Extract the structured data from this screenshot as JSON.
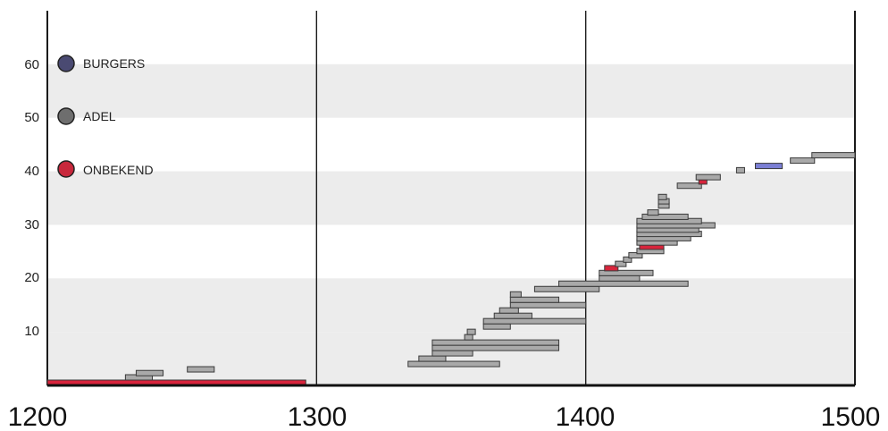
{
  "chart_data": {
    "type": "bar",
    "orientation": "horizontal-range",
    "title": "",
    "xlabel": "",
    "ylabel": "",
    "xlim": [
      1200,
      1500
    ],
    "ylim": [
      0,
      70
    ],
    "x_ticks": [
      "1200",
      "1300",
      "1400",
      "1500"
    ],
    "y_ticks": [
      "10",
      "20",
      "30",
      "40",
      "50",
      "60"
    ],
    "grid": "alternating horizontal bands every 10 units; vertical lines at 1300 and 1400",
    "legend_placement": "top-left",
    "legend": [
      {
        "label": "BURGERS",
        "color": "#4a4a72"
      },
      {
        "label": "ADEL",
        "color": "#6e6e6e"
      },
      {
        "label": "ONBEKEND",
        "color": "#c8283c"
      }
    ],
    "series_colors": {
      "BURGERS": "#7b7fd4",
      "ADEL": "#a9a9a9",
      "ONBEKEND": "#d8243c"
    },
    "bars": [
      {
        "category": "ONBEKEND",
        "start": 1200,
        "end": 1296,
        "y": 0.5
      },
      {
        "category": "ADEL",
        "start": 1229,
        "end": 1239,
        "y": 1.5
      },
      {
        "category": "ADEL",
        "start": 1233,
        "end": 1243,
        "y": 2.3
      },
      {
        "category": "ADEL",
        "start": 1252,
        "end": 1262,
        "y": 3.0
      },
      {
        "category": "ADEL",
        "start": 1334,
        "end": 1368,
        "y": 4.0
      },
      {
        "category": "ADEL",
        "start": 1338,
        "end": 1348,
        "y": 5.0
      },
      {
        "category": "ADEL",
        "start": 1343,
        "end": 1358,
        "y": 6.0
      },
      {
        "category": "ADEL",
        "start": 1343,
        "end": 1390,
        "y": 7.0
      },
      {
        "category": "ADEL",
        "start": 1343,
        "end": 1390,
        "y": 8.0
      },
      {
        "category": "ADEL",
        "start": 1355,
        "end": 1358,
        "y": 9.0
      },
      {
        "category": "ADEL",
        "start": 1356,
        "end": 1359,
        "y": 10.0
      },
      {
        "category": "ADEL",
        "start": 1362,
        "end": 1372,
        "y": 11.0
      },
      {
        "category": "ADEL",
        "start": 1362,
        "end": 1400,
        "y": 12.0
      },
      {
        "category": "ADEL",
        "start": 1366,
        "end": 1380,
        "y": 13.0
      },
      {
        "category": "ADEL",
        "start": 1368,
        "end": 1375,
        "y": 14.0
      },
      {
        "category": "ADEL",
        "start": 1372,
        "end": 1400,
        "y": 15.0
      },
      {
        "category": "ADEL",
        "start": 1372,
        "end": 1390,
        "y": 16.0
      },
      {
        "category": "ADEL",
        "start": 1372,
        "end": 1376,
        "y": 17.0
      },
      {
        "category": "ADEL",
        "start": 1381,
        "end": 1405,
        "y": 18.0
      },
      {
        "category": "ADEL",
        "start": 1390,
        "end": 1438,
        "y": 19.0
      },
      {
        "category": "ADEL",
        "start": 1405,
        "end": 1420,
        "y": 20.0
      },
      {
        "category": "ADEL",
        "start": 1405,
        "end": 1425,
        "y": 21.0
      },
      {
        "category": "ONBEKEND",
        "start": 1407,
        "end": 1412,
        "y": 21.9
      },
      {
        "category": "ADEL",
        "start": 1411,
        "end": 1415,
        "y": 22.7
      },
      {
        "category": "ADEL",
        "start": 1414,
        "end": 1417,
        "y": 23.5
      },
      {
        "category": "ADEL",
        "start": 1416,
        "end": 1421,
        "y": 24.3
      },
      {
        "category": "ADEL",
        "start": 1419,
        "end": 1429,
        "y": 25.1
      },
      {
        "category": "ONBEKEND",
        "start": 1420,
        "end": 1429,
        "y": 25.9
      },
      {
        "category": "ADEL",
        "start": 1419,
        "end": 1434,
        "y": 26.7
      },
      {
        "category": "ADEL",
        "start": 1419,
        "end": 1439,
        "y": 27.5
      },
      {
        "category": "ADEL",
        "start": 1419,
        "end": 1443,
        "y": 28.3
      },
      {
        "category": "ADEL",
        "start": 1419,
        "end": 1442,
        "y": 29.1
      },
      {
        "category": "ADEL",
        "start": 1419,
        "end": 1448,
        "y": 29.9
      },
      {
        "category": "ADEL",
        "start": 1419,
        "end": 1443,
        "y": 30.7
      },
      {
        "category": "ADEL",
        "start": 1421,
        "end": 1438,
        "y": 31.5
      },
      {
        "category": "ADEL",
        "start": 1423,
        "end": 1427,
        "y": 32.3
      },
      {
        "category": "ADEL",
        "start": 1427,
        "end": 1431,
        "y": 33.6
      },
      {
        "category": "ADEL",
        "start": 1427,
        "end": 1431,
        "y": 34.4
      },
      {
        "category": "ADEL",
        "start": 1427,
        "end": 1430,
        "y": 35.2
      },
      {
        "category": "ADEL",
        "start": 1434,
        "end": 1443,
        "y": 37.3
      },
      {
        "category": "ONBEKEND",
        "start": 1442,
        "end": 1445,
        "y": 38.1
      },
      {
        "category": "ADEL",
        "start": 1441,
        "end": 1450,
        "y": 38.9
      },
      {
        "category": "ADEL",
        "start": 1456,
        "end": 1459,
        "y": 40.2
      },
      {
        "category": "BURGERS",
        "start": 1463,
        "end": 1473,
        "y": 41.0
      },
      {
        "category": "ADEL",
        "start": 1476,
        "end": 1485,
        "y": 42.0
      },
      {
        "category": "ADEL",
        "start": 1484,
        "end": 1500,
        "y": 43.0
      }
    ]
  }
}
